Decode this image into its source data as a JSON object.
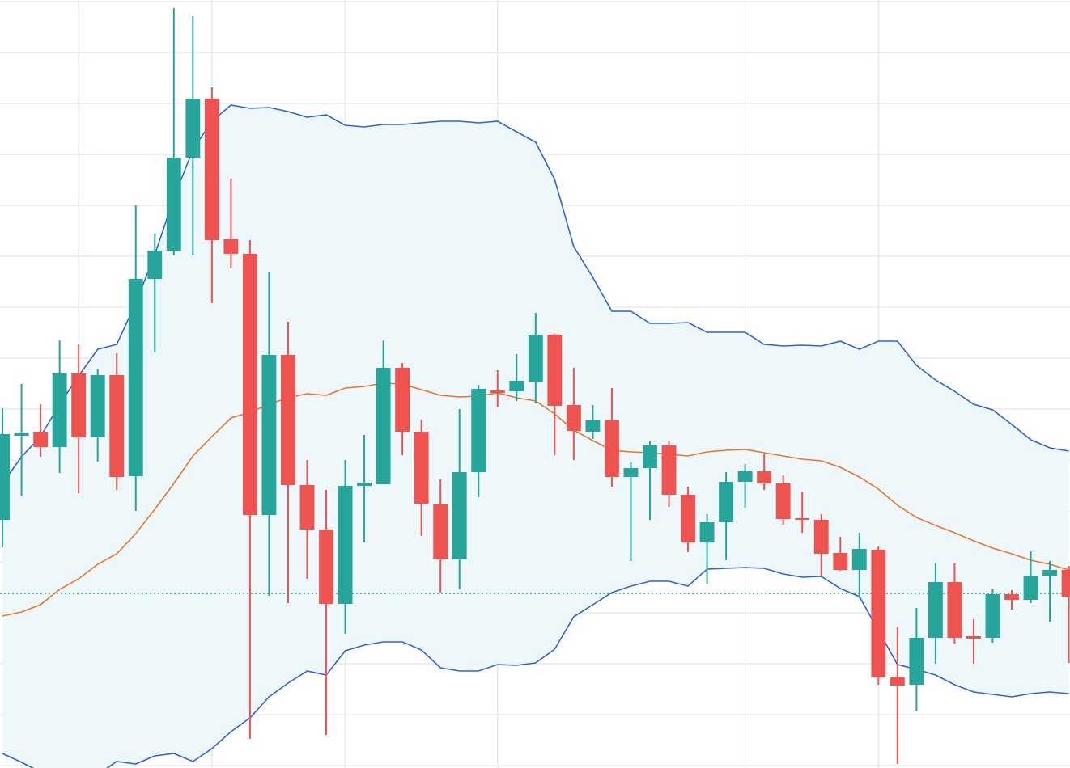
{
  "chart_data": {
    "type": "candlestick",
    "x": [
      0,
      1,
      2,
      3,
      4,
      5,
      6,
      7,
      8,
      9,
      10,
      11,
      12,
      13,
      14,
      15,
      16,
      17,
      18,
      19,
      20,
      21,
      22,
      23,
      24,
      25,
      26,
      27,
      28,
      29,
      30,
      31,
      32,
      33,
      34,
      35,
      36,
      37,
      38,
      39,
      40,
      41,
      42,
      43,
      44,
      45,
      46,
      47,
      48,
      49,
      50,
      51,
      52,
      53,
      54,
      55,
      56
    ],
    "open": [
      307,
      411,
      416,
      397,
      488,
      409,
      486,
      361,
      605,
      640,
      755,
      828,
      654,
      636,
      313,
      511,
      350,
      295,
      203,
      349,
      351,
      495,
      416,
      326,
      258,
      366,
      467,
      466,
      478,
      536,
      449,
      416,
      430,
      360,
      371,
      399,
      338,
      279,
      304,
      354,
      367,
      352,
      309,
      307,
      266,
      245,
      270,
      112,
      103,
      161,
      230,
      163,
      161,
      215,
      208,
      238,
      245
    ],
    "high": [
      445,
      475,
      450,
      529,
      524,
      494,
      513,
      696,
      661,
      940,
      930,
      842,
      729,
      653,
      614,
      552,
      381,
      344,
      381,
      412,
      529,
      501,
      431,
      357,
      444,
      474,
      492,
      512,
      563,
      537,
      495,
      449,
      470,
      378,
      404,
      405,
      348,
      314,
      366,
      376,
      388,
      362,
      342,
      314,
      286,
      291,
      274,
      174,
      198,
      254,
      253,
      184,
      221,
      220,
      268,
      256,
      250
    ],
    "low": [
      273,
      337,
      385,
      365,
      340,
      379,
      344,
      318,
      514,
      634,
      634,
      575,
      618,
      36,
      213,
      204,
      234,
      41,
      166,
      279,
      352,
      387,
      287,
      217,
      221,
      335,
      446,
      454,
      451,
      387,
      381,
      407,
      348,
      256,
      307,
      323,
      267,
      228,
      257,
      322,
      344,
      301,
      291,
      238,
      244,
      210,
      103,
      5,
      70,
      129,
      154,
      129,
      155,
      196,
      204,
      181,
      130
    ],
    "close": [
      413,
      415,
      397,
      488,
      409,
      486,
      360,
      605,
      640,
      755,
      828,
      653,
      636,
      313,
      511,
      350,
      295,
      203,
      349,
      353,
      495,
      416,
      327,
      258,
      366,
      469,
      464,
      479,
      536,
      448,
      417,
      430,
      360,
      371,
      399,
      338,
      279,
      304,
      354,
      367,
      352,
      308,
      307,
      265,
      245,
      271,
      112,
      102,
      161,
      230,
      161,
      160,
      215,
      208,
      238,
      245,
      212
    ],
    "up_color": "#26a69a",
    "down_color": "#ef5350",
    "bands": {
      "fill": "#eef7fa",
      "upper": {
        "color": "#2f62e0",
        "values": [
          352,
          385,
          410,
          450,
          485,
          518,
          524,
          575,
          635,
          705,
          765,
          800,
          820,
          816,
          817,
          812,
          805,
          808,
          795,
          793,
          796,
          796,
          798,
          800,
          800,
          798,
          800,
          787,
          774,
          728,
          645,
          607,
          565,
          565,
          550,
          550,
          551,
          539,
          539,
          539,
          524,
          522,
          523,
          522,
          528,
          518,
          528,
          528,
          498,
          480,
          466,
          450,
          443,
          425,
          406,
          396,
          392
        ]
      },
      "middle": {
        "color": "#e8772e",
        "values": [
          188,
          193,
          202,
          221,
          234,
          252,
          265,
          290,
          320,
          352,
          386,
          410,
          433,
          440,
          450,
          458,
          463,
          461,
          470,
          472,
          476,
          475,
          468,
          461,
          459,
          460,
          464,
          458,
          454,
          438,
          418,
          405,
          393,
          391,
          390,
          388,
          386,
          391,
          393,
          394,
          390,
          386,
          382,
          380,
          372,
          360,
          345,
          325,
          310,
          300,
          291,
          281,
          272,
          265,
          257,
          252,
          245
        ]
      },
      "lower": {
        "color": "#2f62e0",
        "values": [
          18,
          7,
          -5,
          -10,
          -12,
          -8,
          8,
          5,
          15,
          18,
          8,
          24,
          45,
          62,
          88,
          105,
          120,
          115,
          145,
          152,
          156,
          156,
          146,
          124,
          120,
          120,
          128,
          127,
          130,
          147,
          187,
          202,
          217,
          225,
          231,
          231,
          225,
          246,
          247,
          248,
          247,
          240,
          236,
          237,
          222,
          212,
          170,
          128,
          122,
          115,
          103,
          94,
          91,
          88,
          92,
          94,
          92
        ]
      }
    },
    "price_line": {
      "value": 216,
      "color": "#26a69a"
    },
    "xlim": [
      -0.13,
      56.06
    ],
    "xticks": [
      4,
      11,
      18,
      26,
      39,
      46
    ],
    "ylim": [
      0,
      950
    ],
    "yticks": [
      3,
      66,
      129,
      192,
      255,
      318,
      381,
      444,
      507,
      570,
      633,
      696,
      759,
      822,
      885,
      948
    ],
    "grid": true,
    "grid_color": "#e3ebf0"
  }
}
